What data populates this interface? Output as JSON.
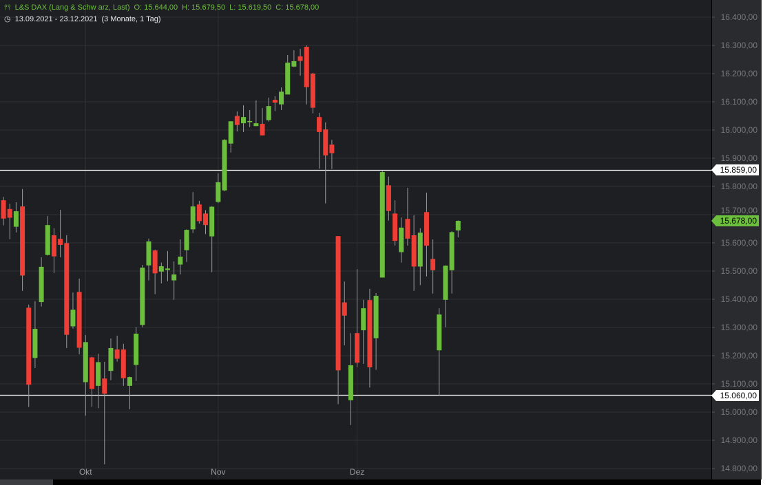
{
  "header": {
    "instrument": "L&S DAX (Lang & Schw arz, Last)",
    "open": "O: 15.644,00",
    "high": "H: 15.679,50",
    "low": "L: 15.619,50",
    "close": "C: 15.678,00",
    "range": "13.09.2021 - 23.12.2021",
    "period": "(3 Monate, 1 Tag)",
    "chart_icon": "candlestick-icon",
    "range_icon": "clock-icon"
  },
  "colors": {
    "up": "#6cbf3c",
    "down": "#ef3e36",
    "background": "#1d1f23",
    "grid": "#2e3136",
    "level_line": "#ffffff"
  },
  "chart_data": {
    "type": "candlestick",
    "title": "",
    "ylim": [
      14800,
      16400
    ],
    "grid": true,
    "y_ticks": [
      "16.400,00",
      "16.300,00",
      "16.200,00",
      "16.100,00",
      "16.000,00",
      "15.900,00",
      "15.800,00",
      "15.700,00",
      "15.600,00",
      "15.500,00",
      "15.400,00",
      "15.300,00",
      "15.200,00",
      "15.100,00",
      "15.000,00",
      "14.900,00",
      "14.800,00"
    ],
    "y_tick_values": [
      16400,
      16300,
      16200,
      16100,
      16000,
      15900,
      15800,
      15700,
      15600,
      15500,
      15400,
      15300,
      15200,
      15100,
      15000,
      14900,
      14800
    ],
    "x_ticks": [
      {
        "label": "Okt",
        "index": 14
      },
      {
        "label": "Nov",
        "index": 35
      },
      {
        "label": "Dez",
        "index": 57
      }
    ],
    "levels": [
      {
        "value": 15859,
        "label": "15.859,00",
        "style": "white"
      },
      {
        "value": 15060,
        "label": "15.060,00",
        "style": "white"
      }
    ],
    "last_price": {
      "value": 15678,
      "label": "15.678,00"
    },
    "ohlc": [
      [
        15571,
        15760,
        15560,
        15741
      ],
      [
        15751,
        15763,
        15662,
        15686
      ],
      [
        15720,
        15739,
        15613,
        15689
      ],
      [
        15657,
        15744,
        15637,
        15712
      ],
      [
        15729,
        15791,
        15430,
        15484
      ],
      [
        15370,
        15381,
        15018,
        15097
      ],
      [
        15192,
        15393,
        15156,
        15295
      ],
      [
        15390,
        15549,
        15374,
        15515
      ],
      [
        15557,
        15695,
        15555,
        15663
      ],
      [
        15627,
        15652,
        15493,
        15552
      ],
      [
        15614,
        15717,
        15549,
        15593
      ],
      [
        15599,
        15627,
        15227,
        15274
      ],
      [
        15304,
        15424,
        15296,
        15363
      ],
      [
        15426,
        15473,
        15205,
        15228
      ],
      [
        15106,
        15273,
        14987,
        15248
      ],
      [
        15194,
        15196,
        15018,
        15082
      ],
      [
        15093,
        15207,
        15014,
        15177
      ],
      [
        15119,
        15178,
        14815,
        15065
      ],
      [
        15146,
        15261,
        15113,
        15227
      ],
      [
        15222,
        15271,
        15179,
        15189
      ],
      [
        15222,
        15242,
        15093,
        15120
      ],
      [
        15093,
        15126,
        15010,
        15124
      ],
      [
        15167,
        15302,
        15110,
        15278
      ],
      [
        15309,
        15522,
        15301,
        15512
      ],
      [
        15520,
        15615,
        15467,
        15605
      ],
      [
        15573,
        15576,
        15418,
        15492
      ],
      [
        15498,
        15530,
        15456,
        15517
      ],
      [
        15504,
        15571,
        15464,
        15509
      ],
      [
        15467,
        15534,
        15398,
        15488
      ],
      [
        15523,
        15612,
        15488,
        15551
      ],
      [
        15574,
        15648,
        15532,
        15646
      ],
      [
        15648,
        15780,
        15635,
        15729
      ],
      [
        15736,
        15749,
        15668,
        15677
      ],
      [
        15704,
        15716,
        15631,
        15663
      ],
      [
        15623,
        15730,
        15496,
        15728
      ],
      [
        15745,
        15846,
        15741,
        15815
      ],
      [
        15786,
        15968,
        15783,
        15965
      ],
      [
        15952,
        16031,
        15920,
        16031
      ],
      [
        16050,
        16066,
        15995,
        16018
      ],
      [
        16024,
        16088,
        15993,
        16046
      ],
      [
        16028,
        16071,
        16010,
        16032
      ],
      [
        16014,
        16105,
        16014,
        16024
      ],
      [
        16022,
        16078,
        15981,
        15981
      ],
      [
        16035,
        16115,
        16030,
        16085
      ],
      [
        16107,
        16120,
        16067,
        16097
      ],
      [
        16091,
        16151,
        16071,
        16136
      ],
      [
        16126,
        16266,
        16126,
        16239
      ],
      [
        16225,
        16283,
        16223,
        16244
      ],
      [
        16261,
        16288,
        16193,
        16245
      ],
      [
        16295,
        16300,
        16091,
        16152
      ],
      [
        16200,
        16203,
        16059,
        16079
      ],
      [
        16046,
        16061,
        15863,
        15993
      ],
      [
        16002,
        16027,
        15740,
        15910
      ],
      [
        15948,
        15965,
        15862,
        15918
      ],
      [
        15624,
        15624,
        15028,
        15148
      ],
      [
        15389,
        15463,
        15237,
        15342
      ],
      [
        15042,
        15280,
        14954,
        15166
      ],
      [
        15280,
        15507,
        15159,
        15175
      ],
      [
        15290,
        15398,
        15171,
        15368
      ],
      [
        15397,
        15437,
        15087,
        15159
      ],
      [
        15262,
        15422,
        15150,
        15412
      ],
      [
        15477,
        15855,
        15477,
        15851
      ],
      [
        15804,
        15835,
        15679,
        15713
      ],
      [
        15704,
        15751,
        15590,
        15607
      ],
      [
        15567,
        15690,
        15530,
        15654
      ],
      [
        15685,
        15795,
        15590,
        15615
      ],
      [
        15627,
        15698,
        15430,
        15516
      ],
      [
        15516,
        15652,
        15450,
        15636
      ],
      [
        15709,
        15778,
        15481,
        15590
      ],
      [
        15543,
        15612,
        15420,
        15503
      ],
      [
        15219,
        15368,
        15059,
        15346
      ],
      [
        15398,
        15520,
        15301,
        15519
      ],
      [
        15503,
        15641,
        15420,
        15638
      ],
      [
        15644,
        15679.5,
        15619.5,
        15678
      ]
    ]
  }
}
